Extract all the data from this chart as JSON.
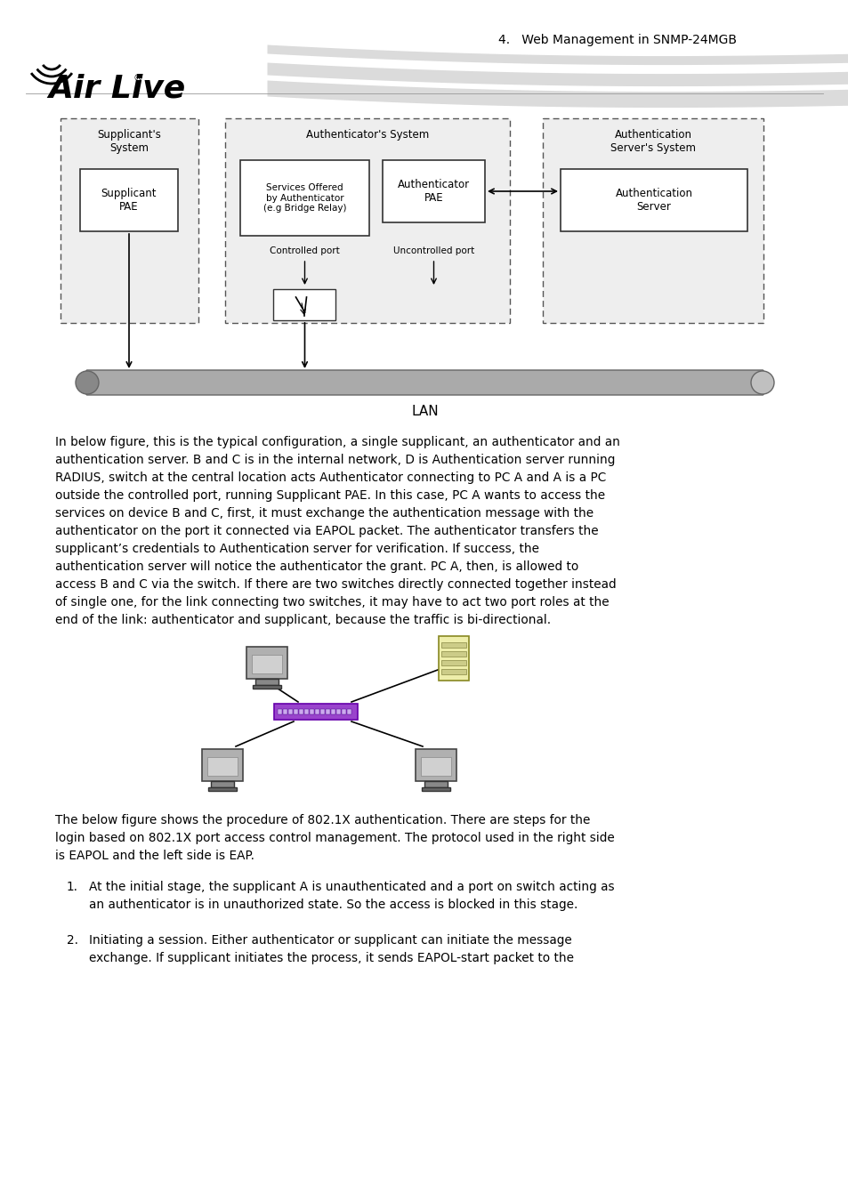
{
  "page_header": "4.   Web Management in SNMP-24MGB",
  "bg_color": "#ffffff",
  "diagram": {
    "supplicant_system_label": "Supplicant's\nSystem",
    "authenticator_system_label": "Authenticator's System",
    "auth_server_system_label": "Authentication\nServer's System",
    "supplicant_pae_label": "Supplicant\nPAE",
    "services_label": "Services Offered\nby Authenticator\n(e.g Bridge Relay)",
    "authenticator_pae_label": "Authenticator\nPAE",
    "auth_server_label": "Authentication\nServer",
    "controlled_port_label": "Controlled port",
    "uncontrolled_port_label": "Uncontrolled port",
    "lan_label": "LAN"
  },
  "para_intro": "The below figure shows the procedure of 802.1X authentication. There are steps for the\nlogin based on 802.1X port access control management. The protocol used in the right side\nis EAPOL and the left side is EAP.",
  "paragraph1": "In below figure, this is the typical configuration, a single supplicant, an authenticator and an\nauthentication server. B and C is in the internal network, D is Authentication server running\nRADIUS, switch at the central location acts Authenticator connecting to PC A and A is a PC\noutside the controlled port, running Supplicant PAE. In this case, PC A wants to access the\nservices on device B and C, first, it must exchange the authentication message with the\nauthenticator on the port it connected via EAPOL packet. The authenticator transfers the\nsupplicant’s credentials to Authentication server for verification. If success, the\nauthentication server will notice the authenticator the grant. PC A, then, is allowed to\naccess B and C via the switch. If there are two switches directly connected together instead\nof single one, for the link connecting two switches, it may have to act two port roles at the\nend of the link: authenticator and supplicant, because the traffic is bi-directional.",
  "item1_num": "1.",
  "item1": "At the initial stage, the supplicant A is unauthenticated and a port on switch acting as\nan authenticator is in unauthorized state. So the access is blocked in this stage.",
  "item2_num": "2.",
  "item2": "Initiating a session. Either authenticator or supplicant can initiate the message\nexchange. If supplicant initiates the process, it sends EAPOL-start packet to the"
}
